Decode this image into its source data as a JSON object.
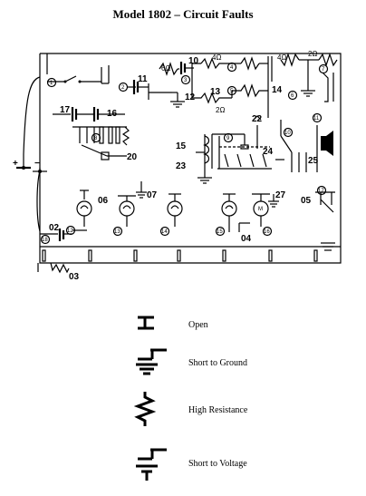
{
  "title": "Model 1802 – Circuit Faults",
  "fault_labels": [
    "01",
    "02",
    "03",
    "04",
    "05",
    "06",
    "07",
    "10",
    "11",
    "12",
    "13",
    "14",
    "15",
    "16",
    "17",
    "20",
    "22",
    "23",
    "24",
    "25",
    "27"
  ],
  "terminal_numbers": [
    "1",
    "2",
    "3",
    "4",
    "5",
    "6",
    "7",
    "8",
    "9",
    "10",
    "11",
    "12",
    "13",
    "14",
    "15",
    "16",
    "17",
    "18"
  ],
  "resistor_values": [
    "6Ω",
    "4Ω",
    "2Ω",
    "4Ω",
    "2Ω"
  ],
  "battery_signs": {
    "plus": "+",
    "minus": "−"
  },
  "legend": [
    {
      "label": "Open",
      "icon": "open-fault-icon"
    },
    {
      "label": "Short to Ground",
      "icon": "short-to-ground-icon"
    },
    {
      "label": "High Resistance",
      "icon": "high-resistance-icon"
    },
    {
      "label": "Short to Voltage",
      "icon": "short-to-voltage-icon"
    }
  ]
}
